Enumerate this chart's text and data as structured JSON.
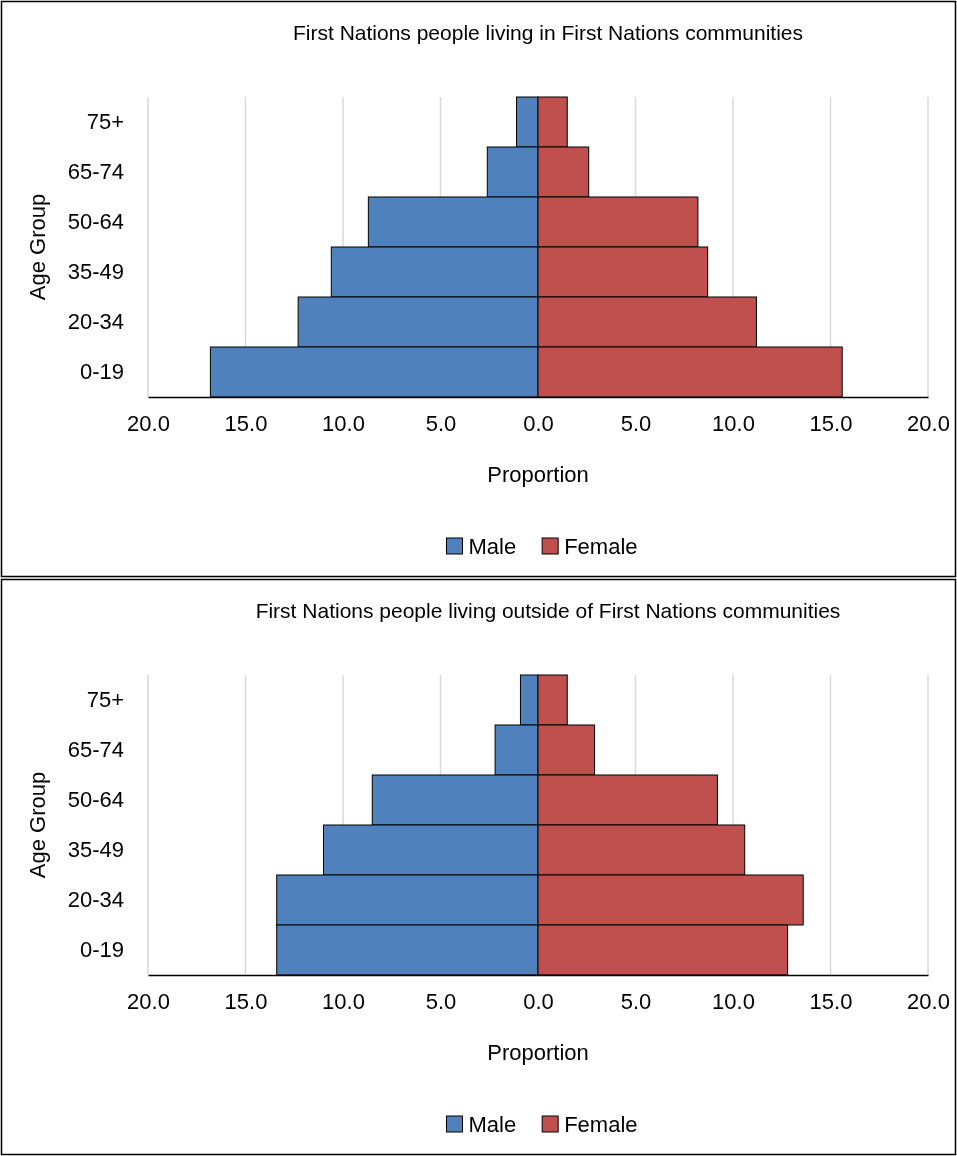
{
  "chart_data": [
    {
      "type": "bar",
      "orientation": "horizontal",
      "title": "First Nations people living in First Nations communities",
      "xlabel": "Proportion",
      "ylabel": "Age Group",
      "categories": [
        "75+",
        "65-74",
        "50-64",
        "35-49",
        "20-34",
        "0-19"
      ],
      "series": [
        {
          "name": "Male",
          "color": "#4f81bd",
          "values": [
            -1.1,
            -2.6,
            -8.7,
            -10.6,
            -12.3,
            -16.8
          ]
        },
        {
          "name": "Female",
          "color": "#c0504d",
          "values": [
            1.5,
            2.6,
            8.2,
            8.7,
            11.2,
            15.6
          ]
        }
      ],
      "xlim": [
        -20,
        20
      ],
      "xticks": [
        {
          "value": -20,
          "label": "20.0"
        },
        {
          "value": -15,
          "label": "15.0"
        },
        {
          "value": -10,
          "label": "10.0"
        },
        {
          "value": -5,
          "label": "5.0"
        },
        {
          "value": 0,
          "label": "0.0"
        },
        {
          "value": 5,
          "label": "5.0"
        },
        {
          "value": 10,
          "label": "10.0"
        },
        {
          "value": 15,
          "label": "15.0"
        },
        {
          "value": 20,
          "label": "20.0"
        }
      ],
      "grid": "x",
      "legend": "bottom",
      "stacked": true
    },
    {
      "type": "bar",
      "orientation": "horizontal",
      "title": "First Nations people living outside of First Nations communities",
      "xlabel": "Proportion",
      "ylabel": "Age Group",
      "categories": [
        "75+",
        "65-74",
        "50-64",
        "35-49",
        "20-34",
        "0-19"
      ],
      "series": [
        {
          "name": "Male",
          "color": "#4f81bd",
          "values": [
            -0.9,
            -2.2,
            -8.5,
            -11.0,
            -13.4,
            -13.4
          ]
        },
        {
          "name": "Female",
          "color": "#c0504d",
          "values": [
            1.5,
            2.9,
            9.2,
            10.6,
            13.6,
            12.8
          ]
        }
      ],
      "xlim": [
        -20,
        20
      ],
      "xticks": [
        {
          "value": -20,
          "label": "20.0"
        },
        {
          "value": -15,
          "label": "15.0"
        },
        {
          "value": -10,
          "label": "10.0"
        },
        {
          "value": -5,
          "label": "5.0"
        },
        {
          "value": 0,
          "label": "0.0"
        },
        {
          "value": 5,
          "label": "5.0"
        },
        {
          "value": 10,
          "label": "10.0"
        },
        {
          "value": 15,
          "label": "15.0"
        },
        {
          "value": 20,
          "label": "20.0"
        }
      ],
      "grid": "x",
      "legend": "bottom",
      "stacked": true
    }
  ]
}
